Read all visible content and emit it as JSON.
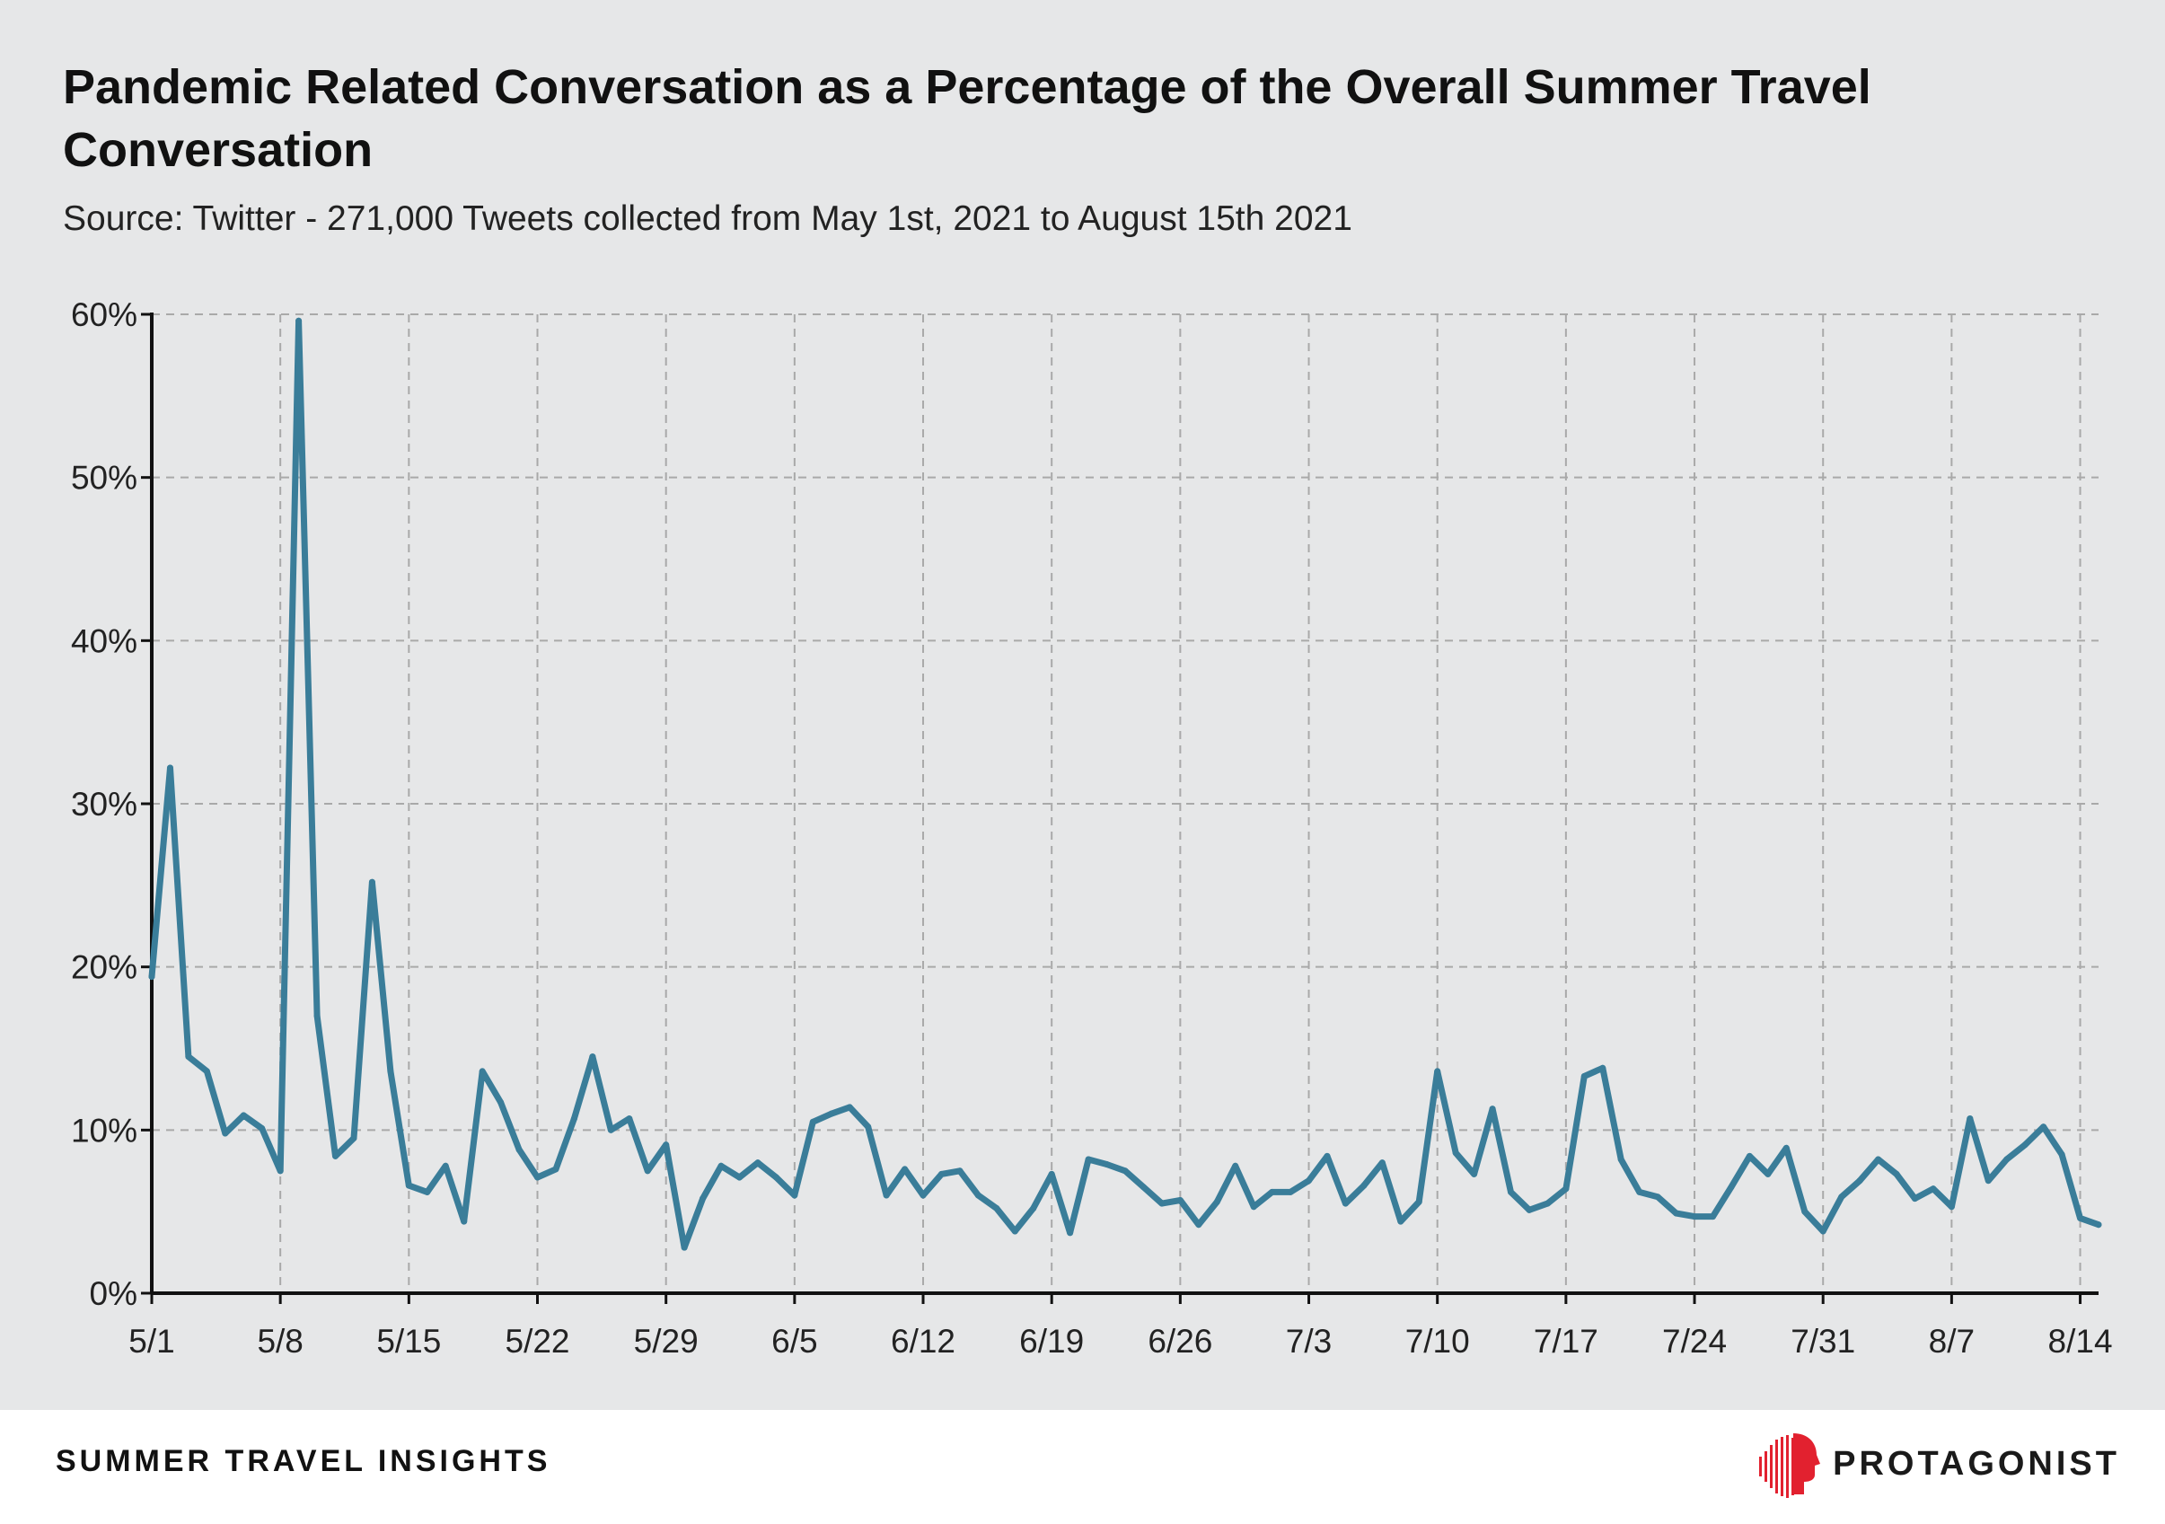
{
  "title": "Pandemic Related Conversation as a Percentage of the Overall Summer Travel Conversation",
  "subtitle": "Source: Twitter - 271,000 Tweets collected from May 1st, 2021 to August 15th 2021",
  "footer": {
    "label": "SUMMER TRAVEL INSIGHTS",
    "brand_name": "PROTAGONIST"
  },
  "colors": {
    "line": "#3a7d99",
    "grid": "#a9a9a9",
    "background": "#e6e7e8",
    "logo": "#e2212f"
  },
  "chart_data": {
    "type": "line",
    "title": "Pandemic Related Conversation as a Percentage of the Overall Summer Travel Conversation",
    "xlabel": "",
    "ylabel": "",
    "x_start": "5/1",
    "x_ticks": [
      "5/1",
      "5/8",
      "5/15",
      "5/22",
      "5/29",
      "6/5",
      "6/12",
      "6/19",
      "6/26",
      "7/3",
      "7/10",
      "7/17",
      "7/24",
      "7/31",
      "8/7",
      "8/14"
    ],
    "y_ticks": [
      "0%",
      "10%",
      "20%",
      "30%",
      "40%",
      "50%",
      "60%"
    ],
    "ylim": [
      0,
      60
    ],
    "grid": true,
    "series": [
      {
        "values": [
          19.4,
          32.2,
          14.5,
          13.6,
          9.8,
          10.9,
          10.1,
          7.5,
          59.6,
          17.0,
          8.4,
          9.5,
          25.2,
          13.6,
          6.6,
          6.2,
          7.8,
          4.4,
          13.6,
          11.7,
          8.8,
          7.1,
          7.6,
          10.7,
          14.5,
          10.0,
          10.7,
          7.5,
          9.1,
          2.8,
          5.8,
          7.8,
          7.1,
          8.0,
          7.1,
          6.0,
          10.5,
          11.0,
          11.4,
          10.2,
          6.0,
          7.6,
          6.0,
          7.3,
          7.5,
          6.0,
          5.2,
          3.8,
          5.2,
          7.3,
          3.7,
          8.2,
          7.9,
          7.5,
          6.5,
          5.5,
          5.7,
          4.2,
          5.6,
          7.8,
          5.3,
          6.2,
          6.2,
          6.9,
          8.4,
          5.5,
          6.6,
          8.0,
          4.4,
          5.6,
          13.6,
          8.6,
          7.3,
          11.3,
          6.2,
          5.1,
          5.5,
          6.4,
          13.3,
          13.8,
          8.2,
          6.2,
          5.9,
          4.9,
          4.7,
          4.7,
          6.5,
          8.4,
          7.3,
          8.9,
          5.0,
          3.8,
          5.9,
          6.9,
          8.2,
          7.3,
          5.8,
          6.4,
          5.3,
          10.7,
          6.9,
          8.2,
          9.1,
          10.2,
          8.5,
          4.6,
          4.2
        ]
      }
    ]
  }
}
